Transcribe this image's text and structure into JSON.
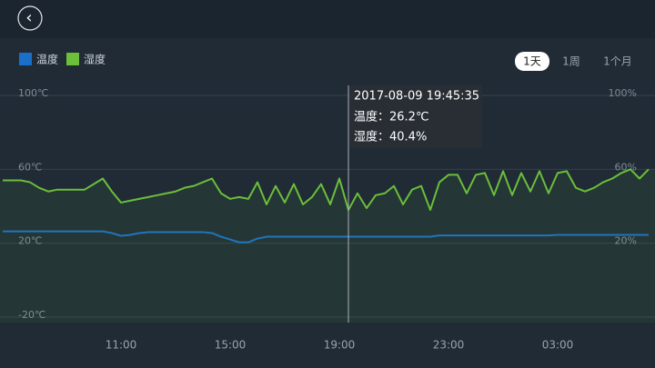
{
  "header": {
    "back": "‹"
  },
  "controls": {
    "ranges": [
      "1天",
      "1周",
      "1个月"
    ]
  },
  "tooltip": {
    "time": "2017-08-09 19:45:35",
    "lines": [
      "温度：26.2℃",
      "湿度：40.4%"
    ]
  },
  "chart_data": {
    "type": "line",
    "categories": [
      null,
      null,
      null,
      null,
      null,
      null,
      null,
      null,
      null,
      null,
      null,
      null,
      null,
      "11:00",
      null,
      null,
      null,
      null,
      null,
      null,
      null,
      null,
      null,
      null,
      null,
      "15:00",
      null,
      null,
      null,
      null,
      null,
      null,
      null,
      null,
      null,
      null,
      null,
      "19:00",
      null,
      null,
      null,
      null,
      null,
      null,
      null,
      null,
      null,
      null,
      null,
      "23:00",
      null,
      null,
      null,
      null,
      null,
      null,
      null,
      null,
      null,
      null,
      null,
      "03:00",
      null,
      null,
      null,
      null,
      null,
      null,
      null,
      null,
      null,
      null
    ],
    "series": [
      {
        "name": "温度",
        "color": "#1a6fc9",
        "values": [
          26.4,
          26.4,
          26.4,
          26.4,
          26.4,
          26.4,
          26.4,
          26.4,
          26.4,
          26.4,
          26.4,
          26.4,
          25.5,
          24,
          24.5,
          25.5,
          26,
          26,
          26,
          26,
          26,
          26,
          26,
          25.5,
          23.5,
          22,
          20.5,
          20.5,
          22.5,
          23.5,
          23.5,
          23.5,
          23.5,
          23.5,
          23.5,
          23.5,
          23.5,
          23.5,
          23.5,
          23.5,
          23.5,
          23.5,
          23.5,
          23.5,
          23.5,
          23.5,
          23.5,
          23.5,
          24.2,
          24.2,
          24.2,
          24.2,
          24.2,
          24.2,
          24.2,
          24.2,
          24.2,
          24.2,
          24.2,
          24.2,
          24.2,
          24.5,
          24.5,
          24.5,
          24.5,
          24.5,
          24.5,
          24.5,
          24.5,
          24.5,
          24.5,
          24.5
        ]
      },
      {
        "name": "湿度",
        "color": "#6bbf3a",
        "axis": "y2",
        "values": [
          54,
          54,
          54,
          53,
          50,
          48,
          49,
          49,
          49,
          49,
          52,
          55,
          48,
          42,
          43,
          44,
          45,
          46,
          47,
          48,
          50,
          51,
          53,
          55,
          47,
          44,
          45,
          44,
          53,
          41,
          51,
          42,
          52,
          41,
          45,
          52,
          41,
          55,
          38,
          47,
          39,
          46,
          47,
          51,
          41,
          49,
          51,
          38,
          53,
          57,
          57,
          47,
          57,
          58,
          46,
          59,
          46,
          58,
          48,
          59,
          47,
          58,
          59,
          50,
          48,
          50,
          53,
          55,
          58,
          60,
          55,
          60
        ]
      }
    ],
    "ylim": [
      -20,
      100
    ],
    "yticks": [
      {
        "value": 100,
        "label": "100℃"
      },
      {
        "value": 60,
        "label": "60℃"
      },
      {
        "value": 20,
        "label": "20℃"
      },
      {
        "value": -20,
        "label": "-20℃"
      }
    ],
    "y2lim": [
      -20,
      100
    ],
    "y2ticks": [
      {
        "value": 100,
        "label": "100%"
      },
      {
        "value": 60,
        "label": "60%"
      },
      {
        "value": 20,
        "label": "20%"
      }
    ],
    "grid": true
  }
}
